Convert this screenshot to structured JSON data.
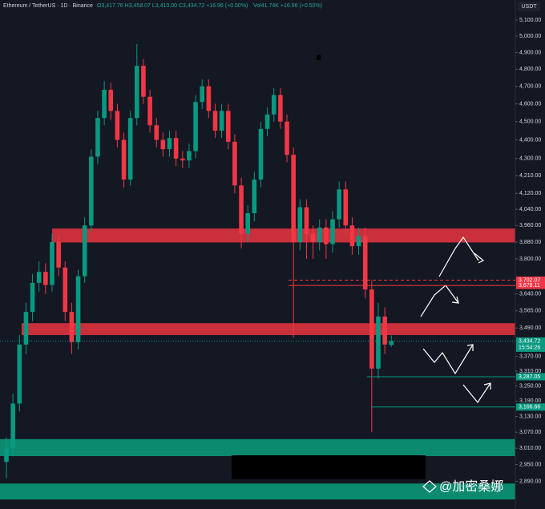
{
  "header": {
    "symbol": "Ethereum / TetherUS · 1D · Binance",
    "ohlc": "O3,417.76 H3,458.07 L3,410.00 C3,434.72 +16.96 (+0.50%)",
    "volume": "Vol41.74K +16.96 (+0.50%)"
  },
  "currency": "USDT",
  "watermark": "@加密桑娜",
  "chart_data": {
    "type": "candlestick",
    "log_scale": true,
    "up_color": "#089981",
    "down_color": "#f23645",
    "open": [
      2960,
      3010,
      3180,
      3420,
      3560,
      3690,
      3740,
      3680,
      3880,
      3760,
      3560,
      3430,
      3720,
      3960,
      4310,
      4520,
      4680,
      4560,
      4400,
      4190,
      4520,
      4820,
      4640,
      4480,
      4400,
      4350,
      4410,
      4300,
      4290,
      4340,
      4610,
      4700,
      4560,
      4450,
      4560,
      4390,
      4160,
      3920,
      4020,
      4190,
      4460,
      4540,
      4650,
      4500,
      4320,
      3880,
      4050,
      3920,
      3880,
      3950,
      3870,
      3990,
      4140,
      3960,
      3860,
      3910,
      3660,
      3320,
      3540,
      3417.76
    ],
    "high": [
      3050,
      3220,
      3460,
      3600,
      3730,
      3790,
      3780,
      3920,
      3910,
      3790,
      3600,
      3750,
      4000,
      4350,
      4560,
      4730,
      4720,
      4600,
      4440,
      4560,
      4950,
      4860,
      4680,
      4520,
      4440,
      4450,
      4450,
      4340,
      4380,
      4650,
      4740,
      4740,
      4600,
      4600,
      4600,
      4430,
      4200,
      4060,
      4230,
      4500,
      4580,
      4690,
      4690,
      4540,
      4360,
      4090,
      4090,
      3960,
      3990,
      3990,
      4030,
      4180,
      4180,
      4000,
      3950,
      3950,
      3700,
      3600,
      3580,
      3458.07
    ],
    "low": [
      2900,
      2980,
      3150,
      3380,
      3520,
      3650,
      3640,
      3650,
      3720,
      3520,
      3380,
      3400,
      3690,
      3930,
      4270,
      4480,
      4510,
      4360,
      4150,
      4160,
      4480,
      4600,
      4440,
      4360,
      4310,
      4310,
      4260,
      4250,
      4250,
      4300,
      4570,
      4520,
      4410,
      4410,
      4350,
      4120,
      3850,
      3880,
      3980,
      4150,
      4420,
      4500,
      4460,
      4280,
      3450,
      3840,
      3800,
      3800,
      3840,
      3800,
      3830,
      3950,
      3920,
      3820,
      3820,
      3620,
      3070,
      3280,
      3380,
      3410.0
    ],
    "close": [
      3010,
      3180,
      3420,
      3560,
      3690,
      3740,
      3680,
      3880,
      3760,
      3560,
      3430,
      3720,
      3960,
      4310,
      4520,
      4680,
      4560,
      4400,
      4190,
      4520,
      4820,
      4640,
      4480,
      4400,
      4350,
      4410,
      4300,
      4290,
      4340,
      4610,
      4700,
      4560,
      4450,
      4560,
      4390,
      4160,
      3920,
      4020,
      4190,
      4460,
      4540,
      4650,
      4500,
      4320,
      3880,
      4050,
      3920,
      3880,
      3950,
      3870,
      3990,
      4140,
      3960,
      3860,
      3910,
      3660,
      3320,
      3540,
      3420,
      3434.72
    ],
    "ylim": [
      2793,
      5227
    ],
    "yticks": [
      {
        "value": 5100,
        "label": "5,100.00"
      },
      {
        "value": 5000,
        "label": "5,000.00"
      },
      {
        "value": 4900,
        "label": "4,900.00"
      },
      {
        "value": 4800,
        "label": "4,800.00"
      },
      {
        "value": 4700,
        "label": "4,700.00"
      },
      {
        "value": 4600,
        "label": "4,600.00"
      },
      {
        "value": 4500,
        "label": "4,500.00"
      },
      {
        "value": 4400,
        "label": "4,400.00"
      },
      {
        "value": 4300,
        "label": "4,300.00"
      },
      {
        "value": 4210,
        "label": "4,210.00"
      },
      {
        "value": 4120,
        "label": "4,120.00"
      },
      {
        "value": 4040,
        "label": "4,040.00"
      },
      {
        "value": 3960,
        "label": "3,960.00"
      },
      {
        "value": 3880,
        "label": "3,880.00"
      },
      {
        "value": 3800,
        "label": "3,800.00"
      },
      {
        "value": 3640,
        "label": "3,640.00"
      },
      {
        "value": 3565,
        "label": "3,565.00"
      },
      {
        "value": 3490,
        "label": "3,490.00"
      },
      {
        "value": 3370,
        "label": "3,370.00"
      },
      {
        "value": 3310,
        "label": "3,310.00"
      },
      {
        "value": 3250,
        "label": "3,250.00"
      },
      {
        "value": 3190,
        "label": "3,190.00"
      },
      {
        "value": 3130,
        "label": "3,130.00"
      },
      {
        "value": 3070,
        "label": "3,070.00"
      },
      {
        "value": 3010,
        "label": "3,010.00"
      },
      {
        "value": 2950,
        "label": "2,950.00"
      },
      {
        "value": 2890,
        "label": "2,890.00"
      }
    ],
    "zones": [
      {
        "low": 3878,
        "high": 3945,
        "color": "#c9303c"
      },
      {
        "low": 3460,
        "high": 3511,
        "color": "#c9303c"
      },
      {
        "low": 2981,
        "high": 3044,
        "color": "#0b8a6f"
      },
      {
        "low": 2826,
        "high": 2882,
        "color": "#0b8a6f"
      }
    ],
    "price_tags": [
      {
        "value": 3702.07,
        "label": "3,702.07",
        "color": "#f23645"
      },
      {
        "value": 3678.11,
        "label": "3,678.11",
        "color": "#f23645"
      },
      {
        "value": 3434.72,
        "label": "3,434.72",
        "color": "#089981",
        "countdown": "15:54:26"
      },
      {
        "value": 3287.05,
        "label": "3,287.05",
        "color": "#089981"
      },
      {
        "value": 3166.66,
        "label": "3,166.66",
        "color": "#089981"
      }
    ]
  }
}
